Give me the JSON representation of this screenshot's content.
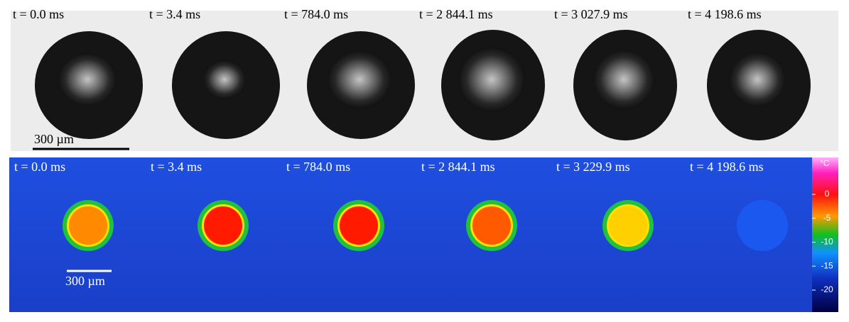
{
  "top": {
    "frames": [
      "t = 0.0 ms",
      "t = 3.4 ms",
      "t = 784.0 ms",
      "t = 2 844.1 ms",
      "t = 3 027.9 ms",
      "t = 4 198.6 ms"
    ],
    "scale_bar": "300 µm"
  },
  "bottom": {
    "frames": [
      "t = 0.0 ms",
      "t = 3.4 ms",
      "t = 784.0 ms",
      "t = 2 844.1 ms",
      "t = 3 229.9 ms",
      "t = 4 198.6 ms"
    ],
    "scale_bar": "300 µm"
  },
  "colorbar": {
    "unit": "°C",
    "ticks": [
      0,
      -5,
      -10,
      -15,
      -20
    ]
  }
}
